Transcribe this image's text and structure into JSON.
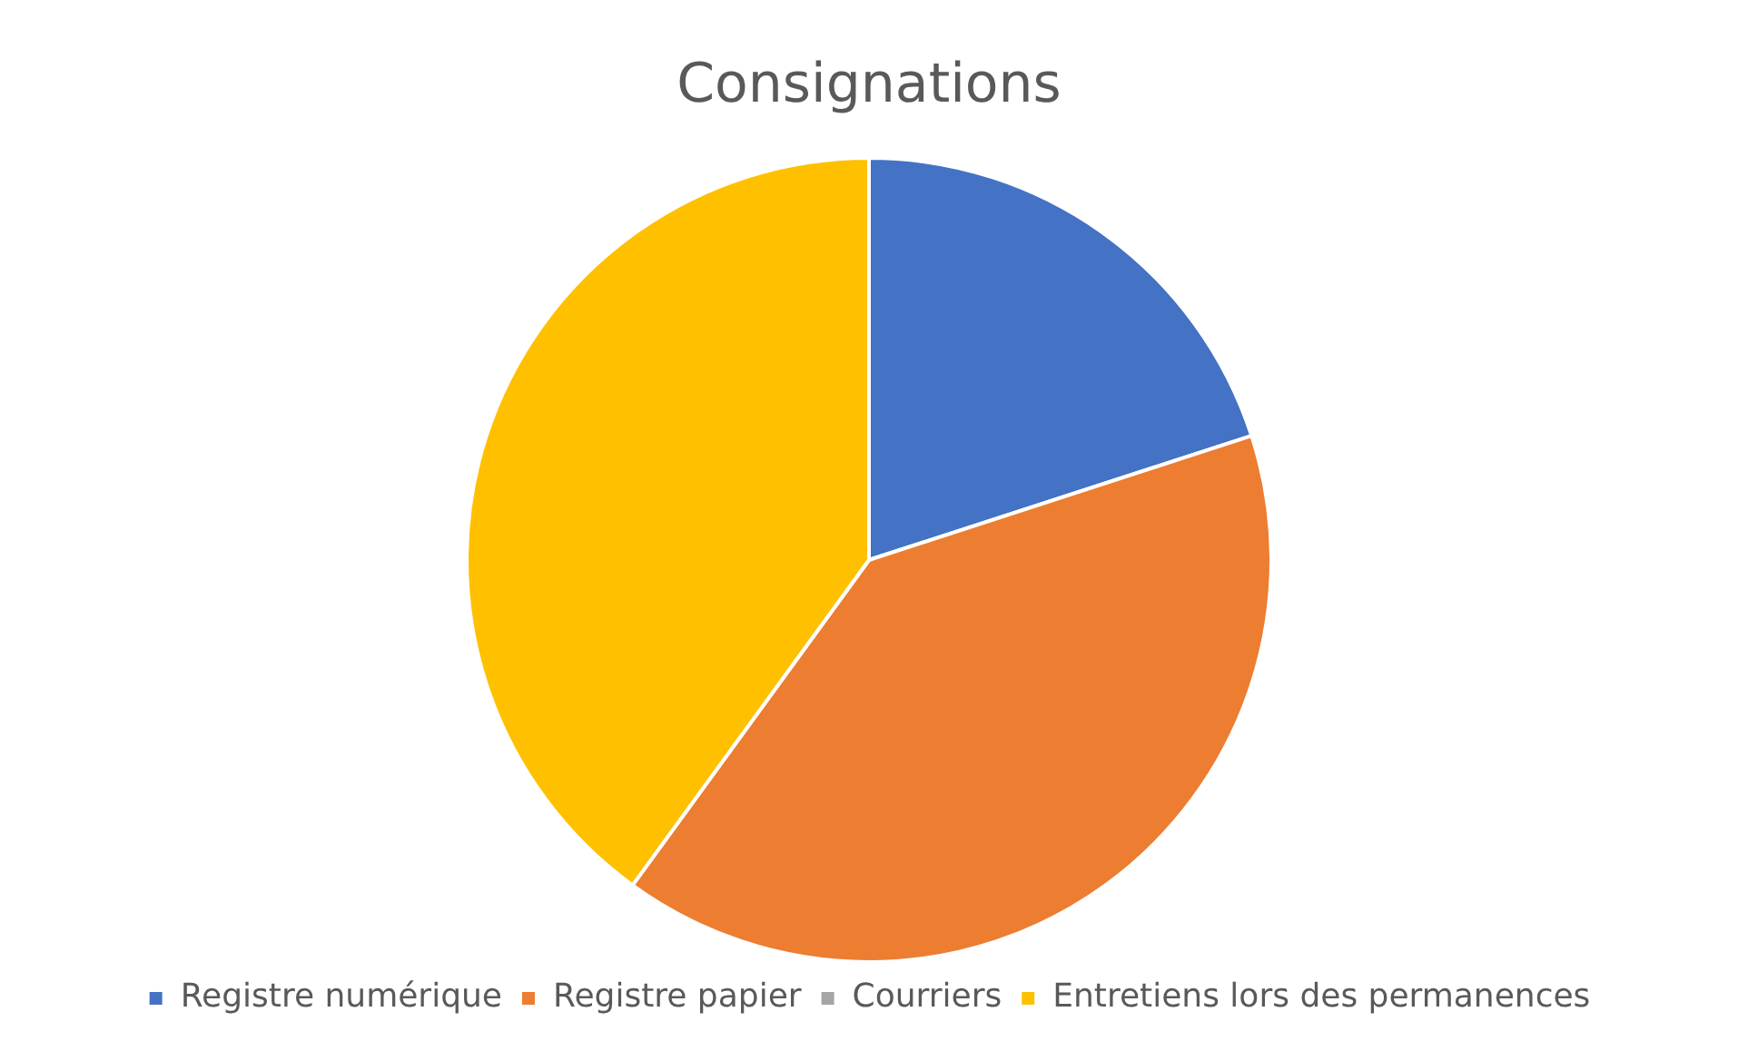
{
  "chart_data": {
    "type": "pie",
    "title": "Consignations",
    "categories": [
      "Registre numérique",
      "Registre papier",
      "Courriers",
      "Entretiens lors des permanences"
    ],
    "values": [
      20,
      40,
      0,
      40
    ],
    "colors": [
      "#4472c4",
      "#ed7d31",
      "#a5a5a5",
      "#ffc000"
    ],
    "legend": "bottom"
  }
}
